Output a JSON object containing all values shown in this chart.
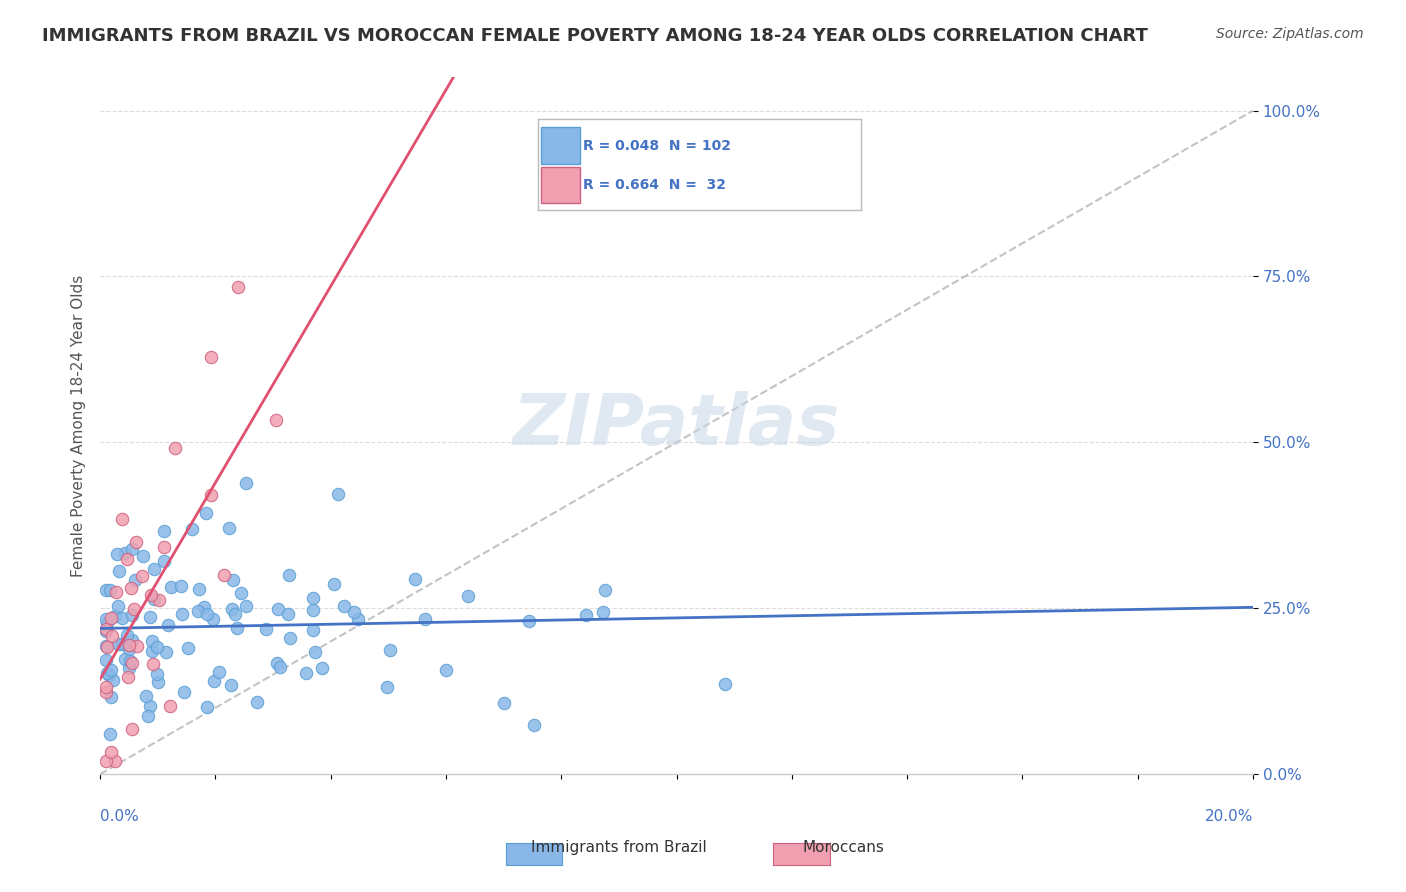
{
  "title": "IMMIGRANTS FROM BRAZIL VS MOROCCAN FEMALE POVERTY AMONG 18-24 YEAR OLDS CORRELATION CHART",
  "source": "Source: ZipAtlas.com",
  "ylabel_ticks": [
    0.0,
    0.25,
    0.5,
    0.75,
    1.0
  ],
  "ylabel_labels": [
    "0.0%",
    "25.0%",
    "50.0%",
    "75.0%",
    "100.0%"
  ],
  "xlim": [
    0.0,
    0.2
  ],
  "ylim": [
    0.0,
    1.05
  ],
  "series1_color": "#89b8e8",
  "series1_edge": "#5a9fd4",
  "series2_color": "#f0a0b0",
  "series2_edge": "#d06080",
  "trendline1_color": "#4472c4",
  "trendline2_color": "#e05070",
  "R1": 0.048,
  "N1": 102,
  "R2": 0.664,
  "N2": 32,
  "legend_label1": "Immigrants from Brazil",
  "legend_label2": "Moroccans",
  "watermark": "ZIPatlas",
  "background_color": "#ffffff"
}
